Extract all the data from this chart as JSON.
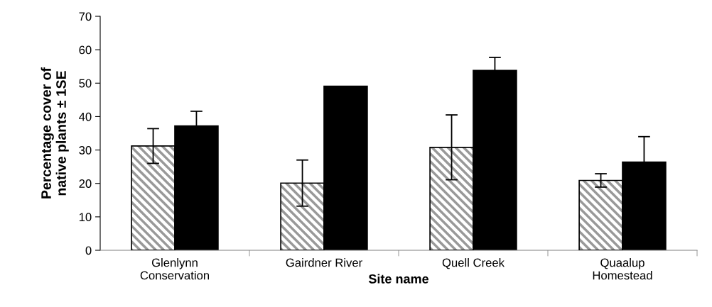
{
  "chart_data": {
    "type": "bar",
    "xlabel": "Site name",
    "ylabel": "Percentage cover of\nnative plants ± 1SE",
    "categories": [
      "Glenlynn\nConservation",
      "Gairdner River",
      "Quell Creek",
      "Quaalup\nHomestead"
    ],
    "series": [
      {
        "color": "#999999",
        "values": [
          31.2,
          20.1,
          30.8,
          20.9
        ],
        "errors": [
          5.2,
          6.9,
          9.7,
          2.0
        ]
      },
      {
        "color": "#000000",
        "values": [
          37.2,
          49.1,
          53.8,
          26.4
        ],
        "errors": [
          4.4,
          null,
          3.9,
          7.6
        ]
      }
    ],
    "ylim": [
      0,
      70
    ],
    "yticks": [
      0,
      10,
      20,
      30,
      40,
      50,
      60,
      70
    ],
    "grid": false,
    "legend": false
  }
}
